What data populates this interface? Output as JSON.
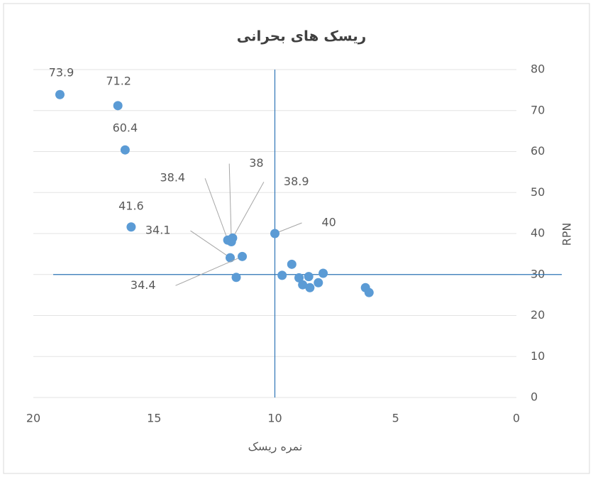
{
  "chart_data": {
    "type": "scatter",
    "title": "ریسک های بحرانی",
    "x_label": "نمره ریسک",
    "y_label": "RPN",
    "xlim": [
      20,
      0
    ],
    "xticks": [
      20,
      15,
      10,
      5,
      0
    ],
    "ylim": [
      0,
      80
    ],
    "yticks": [
      0,
      10,
      20,
      30,
      40,
      50,
      60,
      70,
      80
    ],
    "grid": true,
    "reference_lines": {
      "x": 10,
      "y": 30,
      "color": "#2e75b6"
    },
    "series": [
      {
        "color": "#5b9bd5",
        "show_labels": true,
        "x": [
          18.9,
          16.5,
          16.2,
          15.95,
          11.95,
          11.8,
          11.75,
          11.85,
          11.35,
          10.0
        ],
        "values": [
          73.9,
          71.2,
          60.4,
          41.6,
          38.4,
          38,
          38.9,
          34.1,
          34.4,
          40
        ]
      },
      {
        "color": "#5b9bd5",
        "show_labels": false,
        "x": [
          11.6,
          9.7,
          9.3,
          9.0,
          8.85,
          8.6,
          8.55,
          8.2,
          8.0,
          6.25,
          6.1
        ],
        "values": [
          29.3,
          29.8,
          32.5,
          29.2,
          27.5,
          29.5,
          26.8,
          28.0,
          30.3,
          26.8,
          25.6
        ]
      }
    ]
  }
}
